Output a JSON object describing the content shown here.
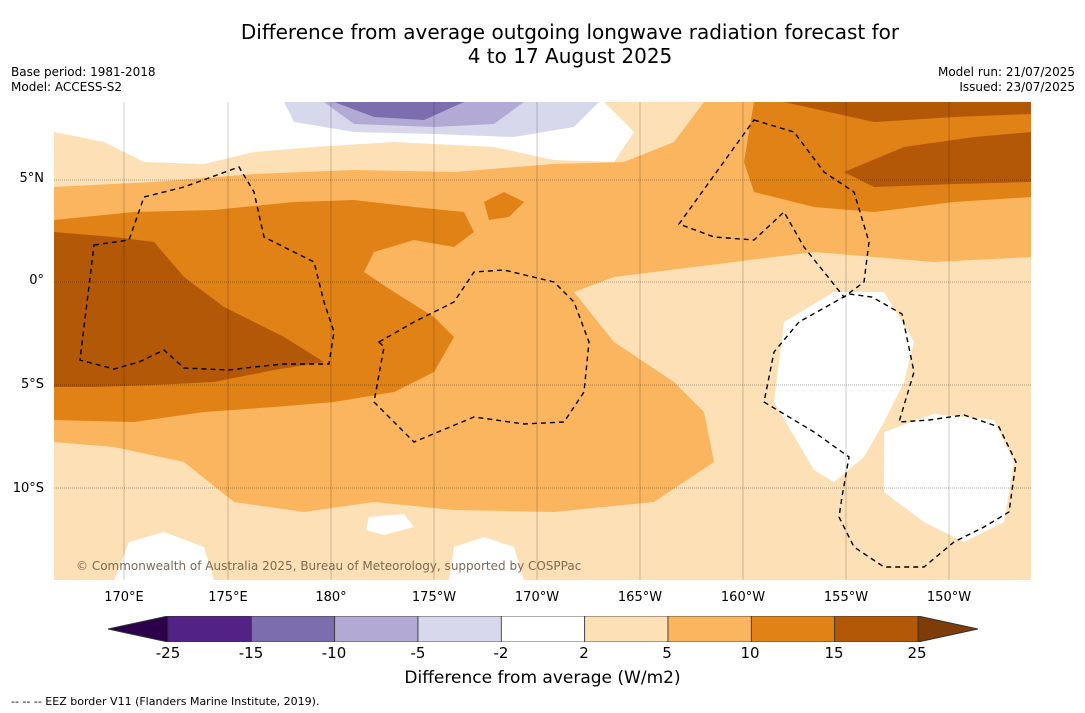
{
  "header": {
    "title_line1": "Difference from average outgoing longwave radiation forecast for",
    "title_line2": "4 to 17 August 2025",
    "base_period": "Base period: 1981-2018",
    "model": "Model: ACCESS-S2",
    "model_run": "Model run: 21/07/2025",
    "issued": "Issued: 23/07/2025"
  },
  "axes": {
    "lat_labels": [
      "5°N",
      "0°",
      "5°S",
      "10°S"
    ],
    "lon_labels": [
      "170°E",
      "175°E",
      "180°",
      "175°W",
      "170°W",
      "165°W",
      "160°W",
      "155°W",
      "150°W"
    ]
  },
  "colorbar": {
    "ticks": [
      "-25",
      "-15",
      "-10",
      "-5",
      "-2",
      "2",
      "5",
      "10",
      "15",
      "25"
    ],
    "colors": [
      "#522287",
      "#7c6daf",
      "#b2aad5",
      "#d7d8ec",
      "#ffffff",
      "#fde0b5",
      "#fbb55f",
      "#e08216",
      "#b35806"
    ],
    "under_color": "#2d004b",
    "over_color": "#7f3b08",
    "label": "Difference from average (W/m2)"
  },
  "footer": {
    "eez_note": "--  --  -- EEZ border V11 (Flanders Marine Institute, 2019).",
    "copyright": "© Commonwealth of Australia 2025, Bureau of Meteorology, supported by COSPPac"
  }
}
